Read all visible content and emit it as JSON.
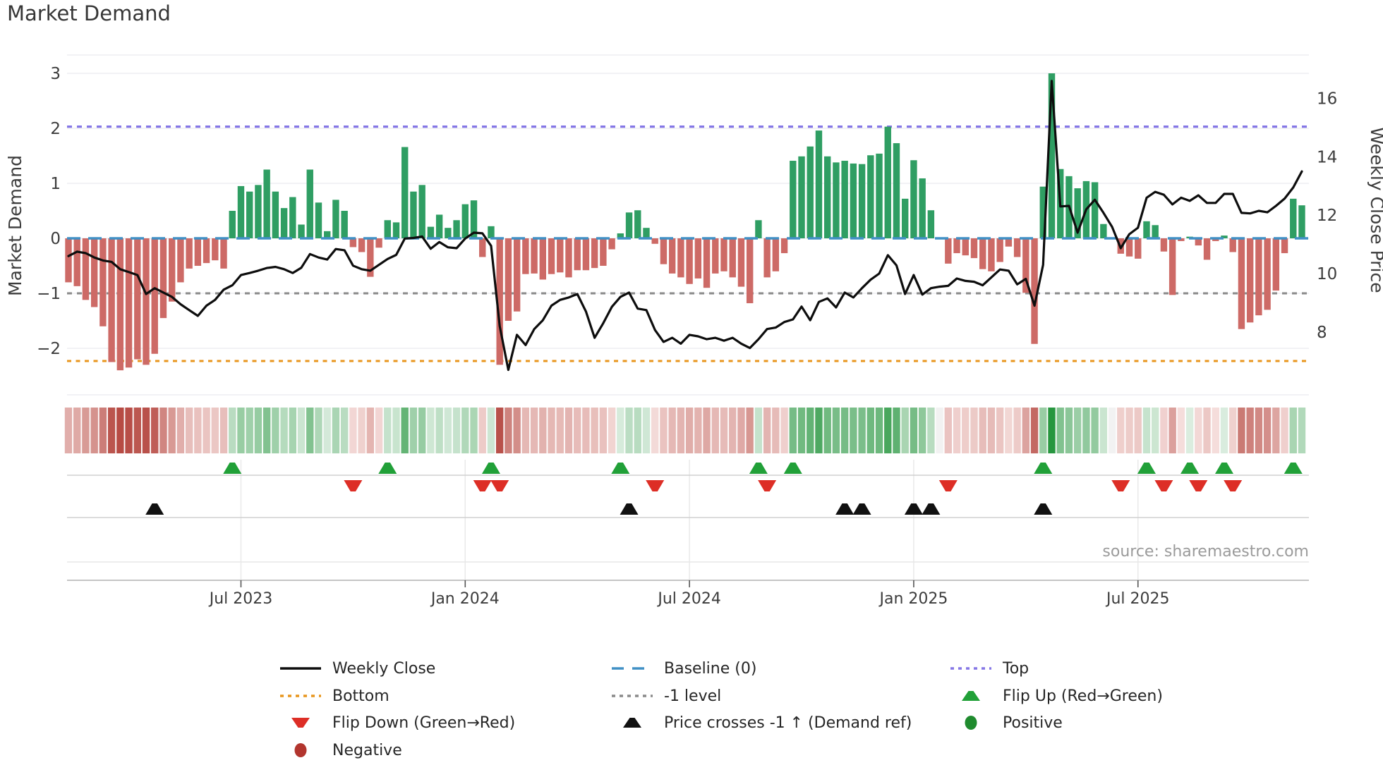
{
  "title": "Market Demand",
  "source": "source: sharemaestro.com",
  "axes": {
    "left_label": "Market Demand",
    "right_label": "Weekly Close Price",
    "demand_ticks": [
      {
        "label": "3",
        "v": 3
      },
      {
        "label": "2",
        "v": 2
      },
      {
        "label": "1",
        "v": 1
      },
      {
        "label": "0",
        "v": 0
      },
      {
        "label": "−1",
        "v": -1
      },
      {
        "label": "−2",
        "v": -2
      }
    ],
    "price_ticks": [
      {
        "label": "16",
        "v": 16
      },
      {
        "label": "14",
        "v": 14
      },
      {
        "label": "12",
        "v": 12
      },
      {
        "label": "10",
        "v": 10
      },
      {
        "label": "8",
        "v": 8
      }
    ],
    "x_ticks": [
      {
        "label": "Jul 2023",
        "week": 20
      },
      {
        "label": "Jan 2024",
        "week": 46
      },
      {
        "label": "Jul 2024",
        "week": 72
      },
      {
        "label": "Jan 2025",
        "week": 98
      },
      {
        "label": "Jul 2025",
        "week": 124
      }
    ]
  },
  "colors": {
    "bar_positive": "#2f9e63",
    "bar_negative": "#cd6a66",
    "price_line": "#0d0d0d",
    "baseline": "#4090c5",
    "top_line": "#8577e6",
    "bottom_line": "#e8961e",
    "neg1_line": "#8a8a8a",
    "flip_up": "#21a038",
    "flip_down": "#dd2e26",
    "price_cross": "#111111",
    "positive_dot": "#1f8b2e",
    "negative_dot": "#b2352e",
    "grid": "#ededf2",
    "panel_line": "#d0d0d0",
    "heat_pos_lo": "#ddeee1",
    "heat_pos_hi": "#27963f",
    "heat_neg_lo": "#f6e0de",
    "heat_neg_hi": "#b4453e",
    "heat_zero": "#f2f2f2"
  },
  "legend": {
    "items": [
      {
        "label": "Weekly Close",
        "swatch": "line",
        "color": "#0d0d0d",
        "col": 1,
        "row": 1,
        "name": "legend-weekly-close"
      },
      {
        "label": "Bottom",
        "swatch": "dot",
        "color": "#e8961e",
        "col": 1,
        "row": 2,
        "name": "legend-bottom"
      },
      {
        "label": "Flip Down (Green→Red)",
        "swatch": "tri-down",
        "color": "#dd2e26",
        "col": 1,
        "row": 3,
        "name": "legend-flip-down"
      },
      {
        "label": "Negative",
        "swatch": "circle",
        "color": "#b2352e",
        "col": 1,
        "row": 4,
        "name": "legend-negative"
      },
      {
        "label": "Baseline (0)",
        "swatch": "dash",
        "color": "#4090c5",
        "col": 2,
        "row": 1,
        "name": "legend-baseline"
      },
      {
        "label": "-1 level",
        "swatch": "dot",
        "color": "#8a8a8a",
        "col": 2,
        "row": 2,
        "name": "legend-neg1-level"
      },
      {
        "label": "Price crosses -1 ↑ (Demand ref)",
        "swatch": "tri-up",
        "color": "#111111",
        "col": 2,
        "row": 3,
        "name": "legend-price-crosses"
      },
      {
        "label": "Top",
        "swatch": "dot",
        "color": "#8577e6",
        "col": 3,
        "row": 1,
        "name": "legend-top"
      },
      {
        "label": "Flip Up (Red→Green)",
        "swatch": "tri-up",
        "color": "#21a038",
        "col": 3,
        "row": 2,
        "name": "legend-flip-up"
      },
      {
        "label": "Positive",
        "swatch": "circle",
        "color": "#1f8b2e",
        "col": 3,
        "row": 3,
        "name": "legend-positive"
      }
    ]
  },
  "chart_data": {
    "type": "bar+line combo with heatmap strip and event markers",
    "x_unit": "weekly, ~Feb 2023 to ~Nov 2025 (144 weeks)",
    "x_tick_weeks": [
      20,
      46,
      72,
      98,
      124
    ],
    "x_tick_labels": [
      "Jul 2023",
      "Jan 2024",
      "Jul 2024",
      "Jan 2025",
      "Jul 2025"
    ],
    "ylabel_left": "Market Demand",
    "ylabel_right": "Weekly Close Price",
    "ylim_demand": [
      -2.85,
      3.33
    ],
    "ylim_price": [
      5.85,
      17.5
    ],
    "ref_lines": {
      "top": 2.03,
      "baseline": 0,
      "neg1": -1,
      "bottom": -2.23
    },
    "series": [
      {
        "name": "Market Demand (bars)",
        "values": [
          -0.8,
          -0.87,
          -1.12,
          -1.25,
          -1.6,
          -2.25,
          -2.4,
          -2.35,
          -2.2,
          -2.3,
          -2.1,
          -1.45,
          -1.15,
          -0.8,
          -0.55,
          -0.5,
          -0.45,
          -0.4,
          -0.55,
          0.5,
          0.95,
          0.85,
          0.97,
          1.25,
          0.85,
          0.55,
          0.75,
          0.25,
          1.25,
          0.65,
          0.13,
          0.7,
          0.5,
          -0.16,
          -0.25,
          -0.7,
          -0.17,
          0.33,
          0.29,
          1.66,
          0.85,
          0.97,
          0.21,
          0.43,
          0.19,
          0.33,
          0.62,
          0.69,
          -0.34,
          0.22,
          -2.3,
          -1.5,
          -1.33,
          -0.65,
          -0.64,
          -0.75,
          -0.65,
          -0.62,
          -0.71,
          -0.58,
          -0.58,
          -0.54,
          -0.5,
          -0.2,
          0.09,
          0.47,
          0.51,
          0.19,
          -0.1,
          -0.47,
          -0.64,
          -0.71,
          -0.83,
          -0.73,
          -0.9,
          -0.64,
          -0.6,
          -0.71,
          -0.88,
          -1.18,
          0.33,
          -0.71,
          -0.6,
          -0.27,
          1.41,
          1.49,
          1.67,
          1.96,
          1.49,
          1.38,
          1.41,
          1.36,
          1.35,
          1.51,
          1.54,
          2.03,
          1.73,
          0.72,
          1.42,
          1.09,
          0.51,
          0.0,
          -0.46,
          -0.27,
          -0.31,
          -0.36,
          -0.56,
          -0.6,
          -0.43,
          -0.15,
          -0.34,
          -0.99,
          -1.92,
          0.94,
          3.0,
          1.26,
          1.13,
          0.91,
          1.04,
          1.02,
          0.26,
          0.0,
          -0.28,
          -0.33,
          -0.37,
          0.31,
          0.24,
          -0.24,
          -1.03,
          -0.05,
          0.03,
          -0.13,
          -0.39,
          -0.05,
          0.05,
          -0.25,
          -1.65,
          -1.53,
          -1.4,
          -1.3,
          -0.95,
          -0.27,
          0.72,
          0.6
        ]
      },
      {
        "name": "Weekly Close (line, right axis)",
        "values": [
          10.6,
          10.75,
          10.7,
          10.55,
          10.45,
          10.4,
          10.15,
          10.05,
          9.95,
          9.3,
          9.5,
          9.35,
          9.2,
          8.95,
          8.75,
          8.55,
          8.9,
          9.1,
          9.45,
          9.6,
          9.95,
          10.02,
          10.1,
          10.19,
          10.23,
          10.15,
          10.02,
          10.2,
          10.67,
          10.55,
          10.48,
          10.84,
          10.8,
          10.27,
          10.15,
          10.1,
          10.3,
          10.5,
          10.64,
          11.2,
          11.22,
          11.27,
          10.85,
          11.08,
          10.9,
          10.87,
          11.2,
          11.4,
          11.38,
          10.95,
          8.2,
          6.7,
          7.9,
          7.55,
          8.1,
          8.4,
          8.9,
          9.1,
          9.18,
          9.3,
          8.7,
          7.8,
          8.3,
          8.86,
          9.2,
          9.35,
          8.8,
          8.75,
          8.07,
          7.66,
          7.8,
          7.6,
          7.9,
          7.85,
          7.75,
          7.8,
          7.7,
          7.8,
          7.6,
          7.45,
          7.75,
          8.1,
          8.15,
          8.34,
          8.43,
          8.87,
          8.4,
          9.03,
          9.15,
          8.84,
          9.35,
          9.18,
          9.5,
          9.79,
          10.0,
          10.63,
          10.28,
          9.3,
          9.95,
          9.28,
          9.5,
          9.55,
          9.58,
          9.83,
          9.75,
          9.72,
          9.6,
          9.87,
          10.14,
          10.1,
          9.63,
          9.82,
          8.9,
          10.3,
          16.6,
          12.3,
          12.32,
          11.4,
          12.2,
          12.53,
          12.08,
          11.6,
          10.87,
          11.35,
          11.57,
          12.6,
          12.8,
          12.7,
          12.37,
          12.6,
          12.49,
          12.68,
          12.42,
          12.42,
          12.73,
          12.73,
          12.08,
          12.06,
          12.15,
          12.1,
          12.32,
          12.57,
          12.95,
          13.5
        ]
      }
    ],
    "markers": {
      "flip_up_weeks": [
        19,
        37,
        49,
        64,
        80,
        84,
        113,
        125,
        130,
        134,
        142
      ],
      "flip_down_weeks": [
        33,
        48,
        50,
        68,
        81,
        102,
        122,
        127,
        131,
        135
      ],
      "price_cross_weeks": [
        10,
        65,
        90,
        92,
        98,
        100,
        113
      ]
    },
    "heatmap": "same demand values rendered as red/green intensity strip",
    "legend_position": "below chart, 3 columns",
    "grid": "light horizontal gridlines in main panel; light vertical month gridlines in marker panels"
  }
}
